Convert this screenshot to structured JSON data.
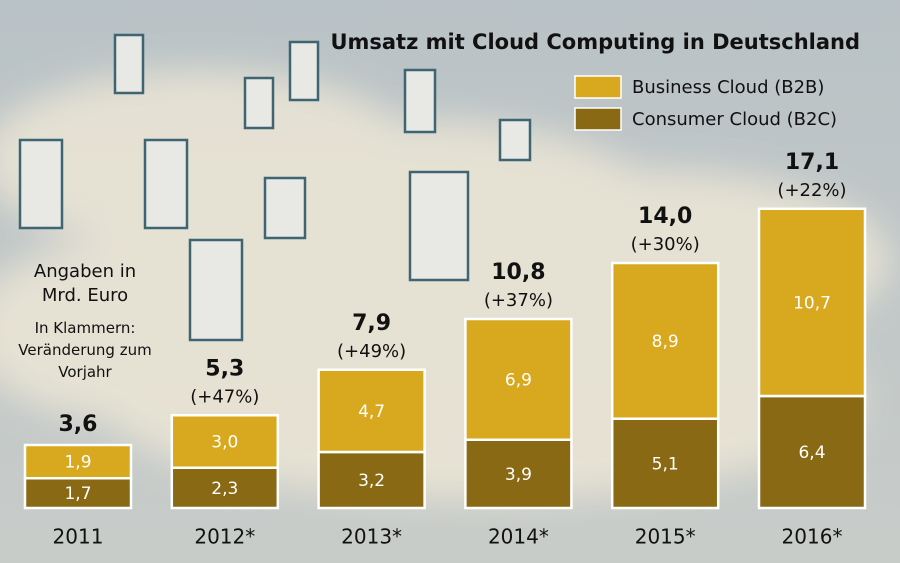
{
  "chart_data": {
    "type": "stacked_bar",
    "title": "Umsatz mit Cloud Computing in Deutschland",
    "annotations": [
      "Angaben in Mrd. Euro",
      "In Klammern: Veränderung zum Vorjahr"
    ],
    "categories": [
      "2011",
      "2012*",
      "2013*",
      "2014*",
      "2015*",
      "2016*"
    ],
    "series": [
      {
        "name": "Consumer Cloud (B2C)",
        "color": "#8a6914",
        "values": [
          1.7,
          2.3,
          3.2,
          3.9,
          5.1,
          6.4
        ],
        "value_labels": [
          "1,7",
          "2,3",
          "3,2",
          "3,9",
          "5,1",
          "6,4"
        ]
      },
      {
        "name": "Business Cloud (B2B)",
        "color": "#d8a91e",
        "values": [
          1.9,
          3.0,
          4.7,
          6.9,
          8.9,
          10.7
        ],
        "value_labels": [
          "1,9",
          "3,0",
          "4,7",
          "6,9",
          "8,9",
          "10,7"
        ]
      }
    ],
    "totals": [
      3.6,
      5.3,
      7.9,
      10.8,
      14.0,
      17.1
    ],
    "total_labels": [
      "3,6",
      "5,3",
      "7,9",
      "10,8",
      "14,0",
      "17,1"
    ],
    "changes": [
      null,
      47,
      49,
      37,
      30,
      22
    ],
    "change_labels": [
      null,
      "(+47%)",
      "(+49%)",
      "(+37%)",
      "(+30%)",
      "(+22%)"
    ],
    "legend": "top-right"
  }
}
